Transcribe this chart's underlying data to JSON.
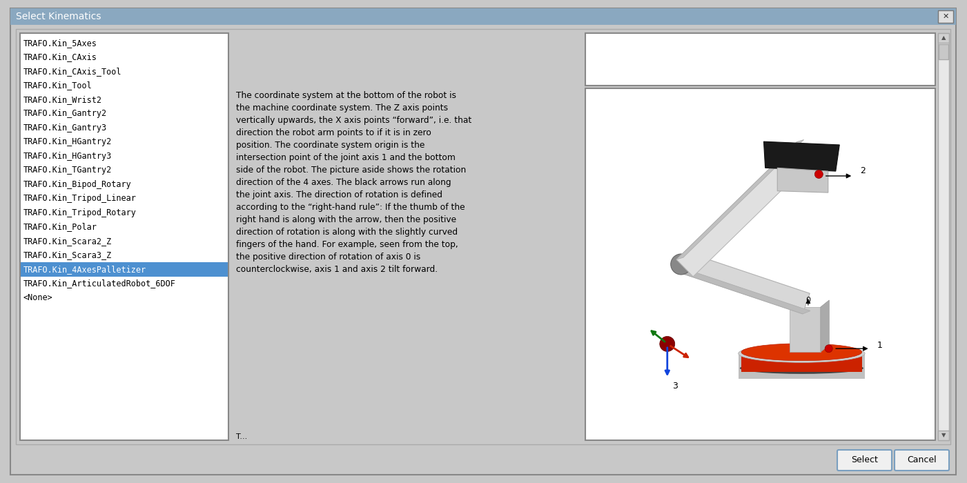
{
  "title": "Select Kinematics",
  "window_bg": "#c8c8c8",
  "list_items": [
    "TRAFO.Kin_5Axes",
    "TRAFO.Kin_CAxis",
    "TRAFO.Kin_CAxis_Tool",
    "TRAFO.Kin_Tool",
    "TRAFO.Kin_Wrist2",
    "TRAFO.Kin_Gantry2",
    "TRAFO.Kin_Gantry3",
    "TRAFO.Kin_HGantry2",
    "TRAFO.Kin_HGantry3",
    "TRAFO.Kin_TGantry2",
    "TRAFO.Kin_Bipod_Rotary",
    "TRAFO.Kin_Tripod_Linear",
    "TRAFO.Kin_Tripod_Rotary",
    "TRAFO.Kin_Polar",
    "TRAFO.Kin_Scara2_Z",
    "TRAFO.Kin_Scara3_Z",
    "TRAFO.Kin_4AxesPalletizer",
    "TRAFO.Kin_ArticulatedRobot_6DOF",
    "<None>"
  ],
  "selected_item_index": 16,
  "selected_bg": "#4d90d0",
  "selected_fg": "#ffffff",
  "list_fg": "#000000",
  "description_text": "The coordinate system at the bottom of the robot is\nthe machine coordinate system. The Z axis points\nvertically upwards, the X axis points “forward”, i.e. that\ndirection the robot arm points to if it is in zero\nposition. The coordinate system origin is the\nintersection point of the joint axis 1 and the bottom\nside of the robot. The picture aside shows the rotation\ndirection of the 4 axes. The black arrows run along\nthe joint axis. The direction of rotation is defined\naccording to the “right-hand rule”: If the thumb of the\nright hand is along with the arrow, then the positive\ndirection of rotation is along with the slightly curved\nfingers of the hand. For example, seen from the top,\nthe positive direction of rotation of axis 0 is\ncounterclockwise, axis 1 and axis 2 tilt forward.",
  "button_select": "Select",
  "button_cancel": "Cancel",
  "title_bar_bg": "#8aa8c0",
  "scrollbar_bg": "#e0e0e0",
  "white": "#ffffff",
  "border_color": "#999999"
}
